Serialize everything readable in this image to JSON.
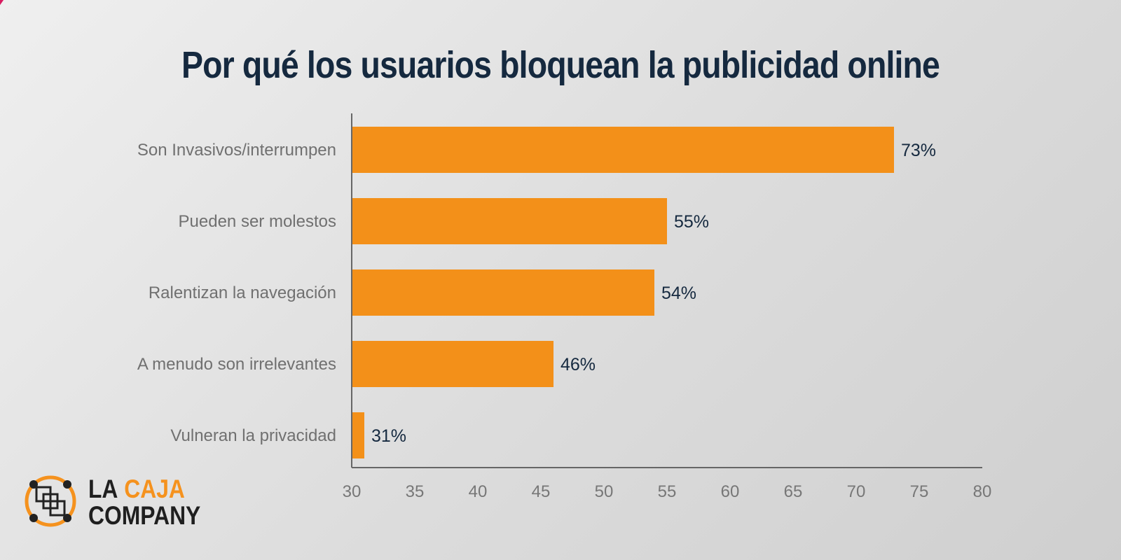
{
  "chart_data": {
    "type": "bar",
    "orientation": "horizontal",
    "title": "Por qué los usuarios bloquean la publicidad online",
    "categories": [
      "Son Invasivos/interrumpen",
      "Pueden ser molestos",
      "Ralentizan la navegación",
      "A menudo son irrelevantes",
      "Vulneran la privacidad"
    ],
    "values": [
      73,
      55,
      54,
      46,
      31
    ],
    "value_labels": [
      "73%",
      "55%",
      "54%",
      "46%",
      "31%"
    ],
    "xlim": [
      30,
      80
    ],
    "xticks": [
      30,
      35,
      40,
      45,
      50,
      55,
      60,
      65,
      70,
      75,
      80
    ],
    "grid": false,
    "bar_color": "#f39019",
    "label_color": "#15293f"
  },
  "logo": {
    "line1_a": "LA",
    "line1_b": "CAJA",
    "line2": "COMPANY",
    "icon": "linked-squares-logo-icon",
    "accent_color": "#f5921e"
  },
  "colors": {
    "title": "#15293f",
    "accent_corner": "#d81b60"
  }
}
